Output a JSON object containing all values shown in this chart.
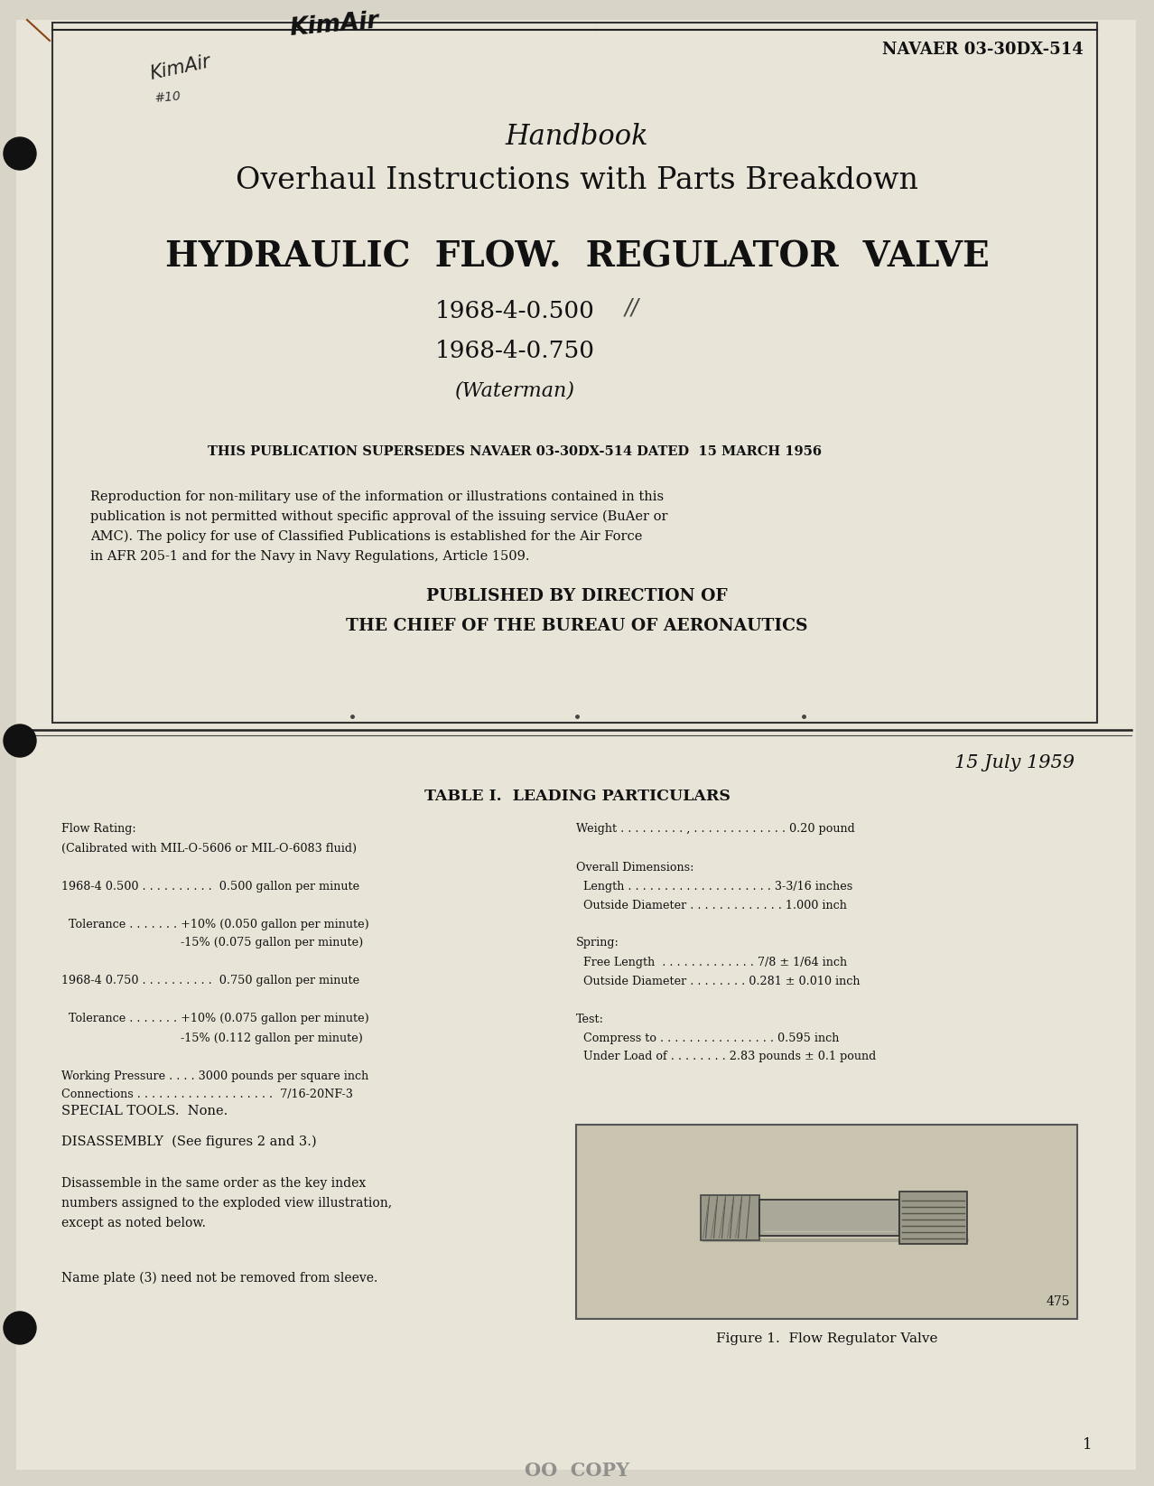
{
  "bg_color": "#d8d4c8",
  "page_color": "#e8e4d8",
  "navaer": "NAVAER 03-30DX-514",
  "title_handbook": "Handbook",
  "title_overhaul": "Overhaul Instructions with Parts Breakdown",
  "title_hydraulic": "HYDRAULIC  FLOW.  REGULATOR  VALVE",
  "model1": "1968-4-0.500",
  "model2": "1968-4-0.750",
  "waterman": "(Waterman)",
  "supersedes": "THIS PUBLICATION SUPERSEDES NAVAER 03-30DX-514 DATED  15 MARCH 1956",
  "reproduction_text": "Reproduction for non-military use of the information or illustrations contained in this\npublication is not permitted without specific approval of the issuing service (BuAer or\nAMC). The policy for use of Classified Publications is established for the Air Force\nin AFR 205-1 and for the Navy in Navy Regulations, Article 1509.",
  "published1": "PUBLISHED BY DIRECTION OF",
  "published2": "THE CHIEF OF THE BUREAU OF AERONAUTICS",
  "date": "15 July 1959",
  "table_title": "TABLE I.  LEADING PARTICULARS",
  "left_col": [
    "Flow Rating:",
    "(Calibrated with MIL-O-5606 or MIL-O-6083 fluid)",
    "",
    "1968-4 0.500 . . . . . . . . . .  0.500 gallon per minute",
    "",
    "  Tolerance . . . . . . . +10% (0.050 gallon per minute)",
    "                                 -15% (0.075 gallon per minute)",
    "",
    "1968-4 0.750 . . . . . . . . . .  0.750 gallon per minute",
    "",
    "  Tolerance . . . . . . . +10% (0.075 gallon per minute)",
    "                                 -15% (0.112 gallon per minute)",
    "",
    "Working Pressure . . . . 3000 pounds per square inch",
    "Connections . . . . . . . . . . . . . . . . . . .  7/16-20NF-3"
  ],
  "right_col": [
    "Weight . . . . . . . . . , . . . . . . . . . . . . . 0.20 pound",
    "",
    "Overall Dimensions:",
    "  Length . . . . . . . . . . . . . . . . . . . . 3-3/16 inches",
    "  Outside Diameter . . . . . . . . . . . . . 1.000 inch",
    "",
    "Spring:",
    "  Free Length  . . . . . . . . . . . . . 7/8 ± 1/64 inch",
    "  Outside Diameter . . . . . . . . 0.281 ± 0.010 inch",
    "",
    "Test:",
    "  Compress to . . . . . . . . . . . . . . . . 0.595 inch",
    "  Under Load of . . . . . . . . 2.83 pounds ± 0.1 pound"
  ],
  "special_tools": "SPECIAL TOOLS.  None.",
  "disassembly": "DISASSEMBLY  (See figures 2 and 3.)",
  "disassembly_text": "Disassemble in the same order as the key index\nnumbers assigned to the exploded view illustration,\nexcept as noted below.",
  "nameplate_text": "Name plate (3) need not be removed from sleeve.",
  "figure_caption": "Figure 1.  Flow Regulator Valve",
  "fig_num": "475",
  "page_num": "1",
  "copy_text": "OO  COPY"
}
